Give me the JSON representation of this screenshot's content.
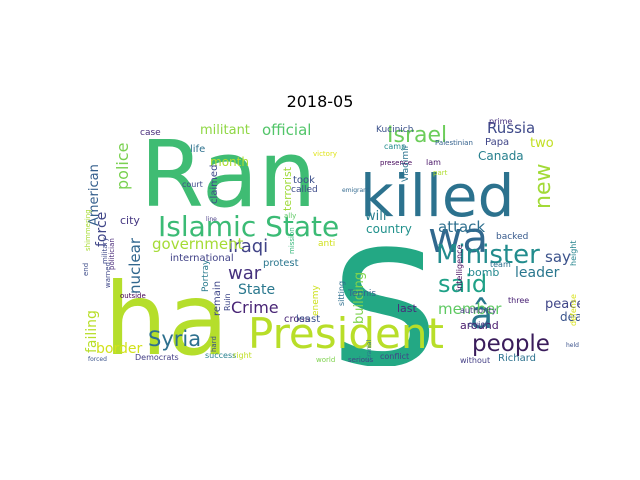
{
  "figure": {
    "title": "2018-05"
  },
  "words": [
    {
      "text": "Ran",
      "color": "#3fbc73"
    },
    {
      "text": "ha",
      "color": "#b5de2b"
    },
    {
      "text": "s",
      "color": "#23a884"
    },
    {
      "text": "killed",
      "color": "#2c728e"
    },
    {
      "text": "President",
      "color": "#b8de29"
    },
    {
      "text": "wa",
      "color": "#31688e"
    },
    {
      "text": "Islamic State",
      "color": "#3bbb75"
    },
    {
      "text": "Minister",
      "color": "#228c8d"
    },
    {
      "text": "Israel",
      "color": "#6ccd5a"
    },
    {
      "text": "said",
      "color": "#1fa187"
    },
    {
      "text": "people",
      "color": "#3a1c5b"
    },
    {
      "text": "â",
      "color": "#2a788e"
    },
    {
      "text": "new",
      "color": "#a2da37"
    },
    {
      "text": "Syria",
      "color": "#2d708e"
    },
    {
      "text": "Iraqi",
      "color": "#414487"
    },
    {
      "text": "police",
      "color": "#7ad151"
    },
    {
      "text": "war",
      "color": "#46327e"
    },
    {
      "text": "official",
      "color": "#52c569"
    },
    {
      "text": "militant",
      "color": "#8fd744"
    },
    {
      "text": "government",
      "color": "#a5db36"
    },
    {
      "text": "American",
      "color": "#355f8d"
    },
    {
      "text": "force",
      "color": "#404688"
    },
    {
      "text": "nuclear",
      "color": "#31678e"
    },
    {
      "text": "failing",
      "color": "#b8de29"
    },
    {
      "text": "border",
      "color": "#d2e21b"
    },
    {
      "text": "Crime",
      "color": "#482475"
    },
    {
      "text": "attack",
      "color": "#2e6f8e"
    },
    {
      "text": "Russia",
      "color": "#3e4989"
    },
    {
      "text": "two",
      "color": "#c2df23"
    },
    {
      "text": "Canada",
      "color": "#27808e"
    },
    {
      "text": "Papa",
      "color": "#404688"
    },
    {
      "text": "say",
      "color": "#3b528b"
    },
    {
      "text": "leader",
      "color": "#2a778e"
    },
    {
      "text": "member",
      "color": "#5ec962"
    },
    {
      "text": "peace",
      "color": "#404688"
    },
    {
      "text": "deal",
      "color": "#3a548c"
    },
    {
      "text": "will",
      "color": "#287d8e"
    },
    {
      "text": "country",
      "color": "#21918c"
    },
    {
      "text": "city",
      "color": "#453781"
    },
    {
      "text": "State",
      "color": "#2a788e"
    },
    {
      "text": "month",
      "color": "#addc30"
    },
    {
      "text": "terrorist",
      "color": "#9fda3a"
    },
    {
      "text": "claimed",
      "color": "#3e4a89"
    },
    {
      "text": "building",
      "color": "#7fd34e"
    },
    {
      "text": "bomb",
      "color": "#23888e"
    },
    {
      "text": "took",
      "color": "#3c4f8a"
    },
    {
      "text": "called",
      "color": "#3e4c8a"
    },
    {
      "text": "international",
      "color": "#414287"
    },
    {
      "text": "protest",
      "color": "#2a768e"
    },
    {
      "text": "cross",
      "color": "#482576"
    },
    {
      "text": "least",
      "color": "#3b528b"
    },
    {
      "text": "last",
      "color": "#472d7b"
    },
    {
      "text": "around",
      "color": "#481a6c"
    },
    {
      "text": "remain",
      "color": "#3f4788"
    },
    {
      "text": "Portray",
      "color": "#297b8e"
    },
    {
      "text": "Democrats",
      "color": "#433d84"
    },
    {
      "text": "success",
      "color": "#26818e"
    },
    {
      "text": "right",
      "color": "#c0df25"
    },
    {
      "text": "life",
      "color": "#2d718e"
    },
    {
      "text": "court",
      "color": "#3e4a89"
    },
    {
      "text": "Ruin",
      "color": "#3f4889"
    },
    {
      "text": "outside",
      "color": "#440154"
    },
    {
      "text": "end",
      "color": "#3e4c8a"
    },
    {
      "text": "warned",
      "color": "#3f4788"
    },
    {
      "text": "politician",
      "color": "#482878"
    },
    {
      "text": "case",
      "color": "#472c7a"
    },
    {
      "text": "Kucinich",
      "color": "#3b518b"
    },
    {
      "text": "camp",
      "color": "#228b8d"
    },
    {
      "text": "Vladimir",
      "color": "#2c738e"
    },
    {
      "text": "lam",
      "color": "#481467"
    },
    {
      "text": "team",
      "color": "#2d708e"
    },
    {
      "text": "three",
      "color": "#482173"
    },
    {
      "text": "quiet",
      "color": "#3c508b"
    },
    {
      "text": "intelligence",
      "color": "#470d60"
    },
    {
      "text": "backed",
      "color": "#375a8c"
    },
    {
      "text": "prime",
      "color": "#46307e"
    },
    {
      "text": "defense",
      "color": "#d8e219"
    },
    {
      "text": "Richard",
      "color": "#2c728e"
    },
    {
      "text": "without",
      "color": "#433e85"
    },
    {
      "text": "conflict",
      "color": "#404588"
    },
    {
      "text": "Tennis",
      "color": "#32648e"
    },
    {
      "text": "enemy",
      "color": "#cde11d"
    },
    {
      "text": "anti",
      "color": "#d0e11c"
    },
    {
      "text": "sitting",
      "color": "#2e6e8e"
    },
    {
      "text": "authority",
      "color": "#453882"
    },
    {
      "text": "height",
      "color": "#25848e"
    },
    {
      "text": "shimmering",
      "color": "#a8db34"
    },
    {
      "text": "military",
      "color": "#3e4989"
    },
    {
      "text": "hard",
      "color": "#3d4d8a"
    },
    {
      "text": "world",
      "color": "#7fd34e"
    },
    {
      "text": "serious",
      "color": "#404387"
    },
    {
      "text": "forced",
      "color": "#3a538b"
    },
    {
      "text": "line",
      "color": "#443983"
    },
    {
      "text": "ally",
      "color": "#5cc863"
    },
    {
      "text": "victory",
      "color": "#dfe318"
    },
    {
      "text": "mission",
      "color": "#35b779"
    },
    {
      "text": "presence",
      "color": "#46085c"
    },
    {
      "text": "part",
      "color": "#b0dd2f"
    },
    {
      "text": "Palestinian",
      "color": "#34618d"
    },
    {
      "text": "Cranial",
      "color": "#2d708e"
    },
    {
      "text": "emigrant",
      "color": "#31688e"
    },
    {
      "text": "held",
      "color": "#3b528b"
    }
  ]
}
